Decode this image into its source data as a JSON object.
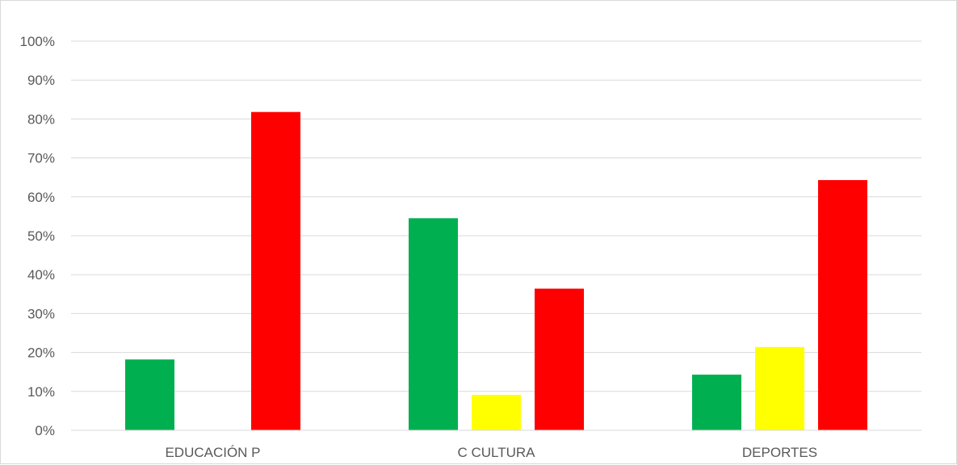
{
  "chart_data": {
    "type": "bar",
    "categories": [
      "EDUCACIÓN P",
      "C CULTURA",
      "DEPORTES"
    ],
    "series": [
      {
        "color": "#00b050",
        "values": [
          18.2,
          54.5,
          14.3
        ]
      },
      {
        "color": "#ffff00",
        "values": [
          0,
          9.1,
          21.4
        ]
      },
      {
        "color": "#ff0000",
        "values": [
          81.8,
          36.4,
          64.3
        ]
      }
    ],
    "ylim": [
      0,
      100
    ],
    "y_ticks": [
      "0%",
      "10%",
      "20%",
      "30%",
      "40%",
      "50%",
      "60%",
      "70%",
      "80%",
      "90%",
      "100%"
    ],
    "y_unit": "%",
    "grid": true,
    "legend": "none"
  }
}
